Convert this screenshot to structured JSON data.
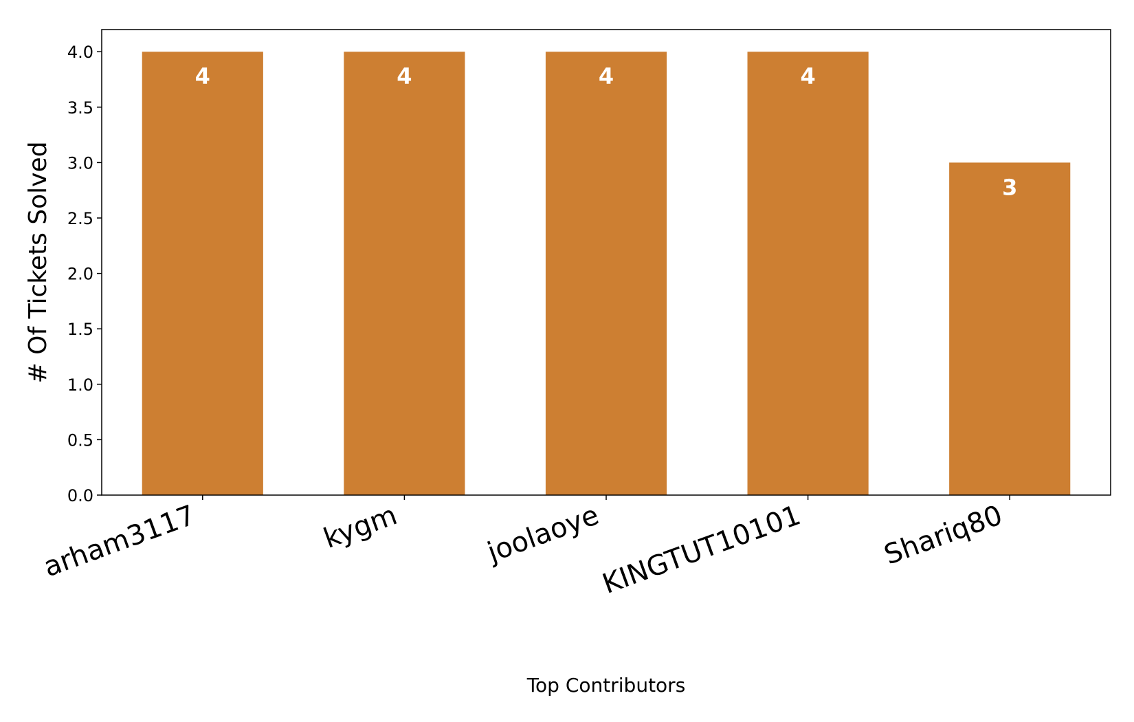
{
  "chart_data": {
    "type": "bar",
    "title": "",
    "xlabel": "Top Contributors",
    "ylabel": "# Of Tickets Solved",
    "categories": [
      "arham3117",
      "kygm",
      "joolaoye",
      "KINGTUT10101",
      "Shariq80"
    ],
    "values": [
      4,
      4,
      4,
      4,
      3
    ],
    "data_labels": [
      "4",
      "4",
      "4",
      "4",
      "3"
    ],
    "ylim": [
      0,
      4.2
    ],
    "yticks": [
      "0.0",
      "0.5",
      "1.0",
      "1.5",
      "2.0",
      "2.5",
      "3.0",
      "3.5",
      "4.0"
    ],
    "grid": false,
    "legend": "none",
    "bar_color": "#cd7f32"
  }
}
